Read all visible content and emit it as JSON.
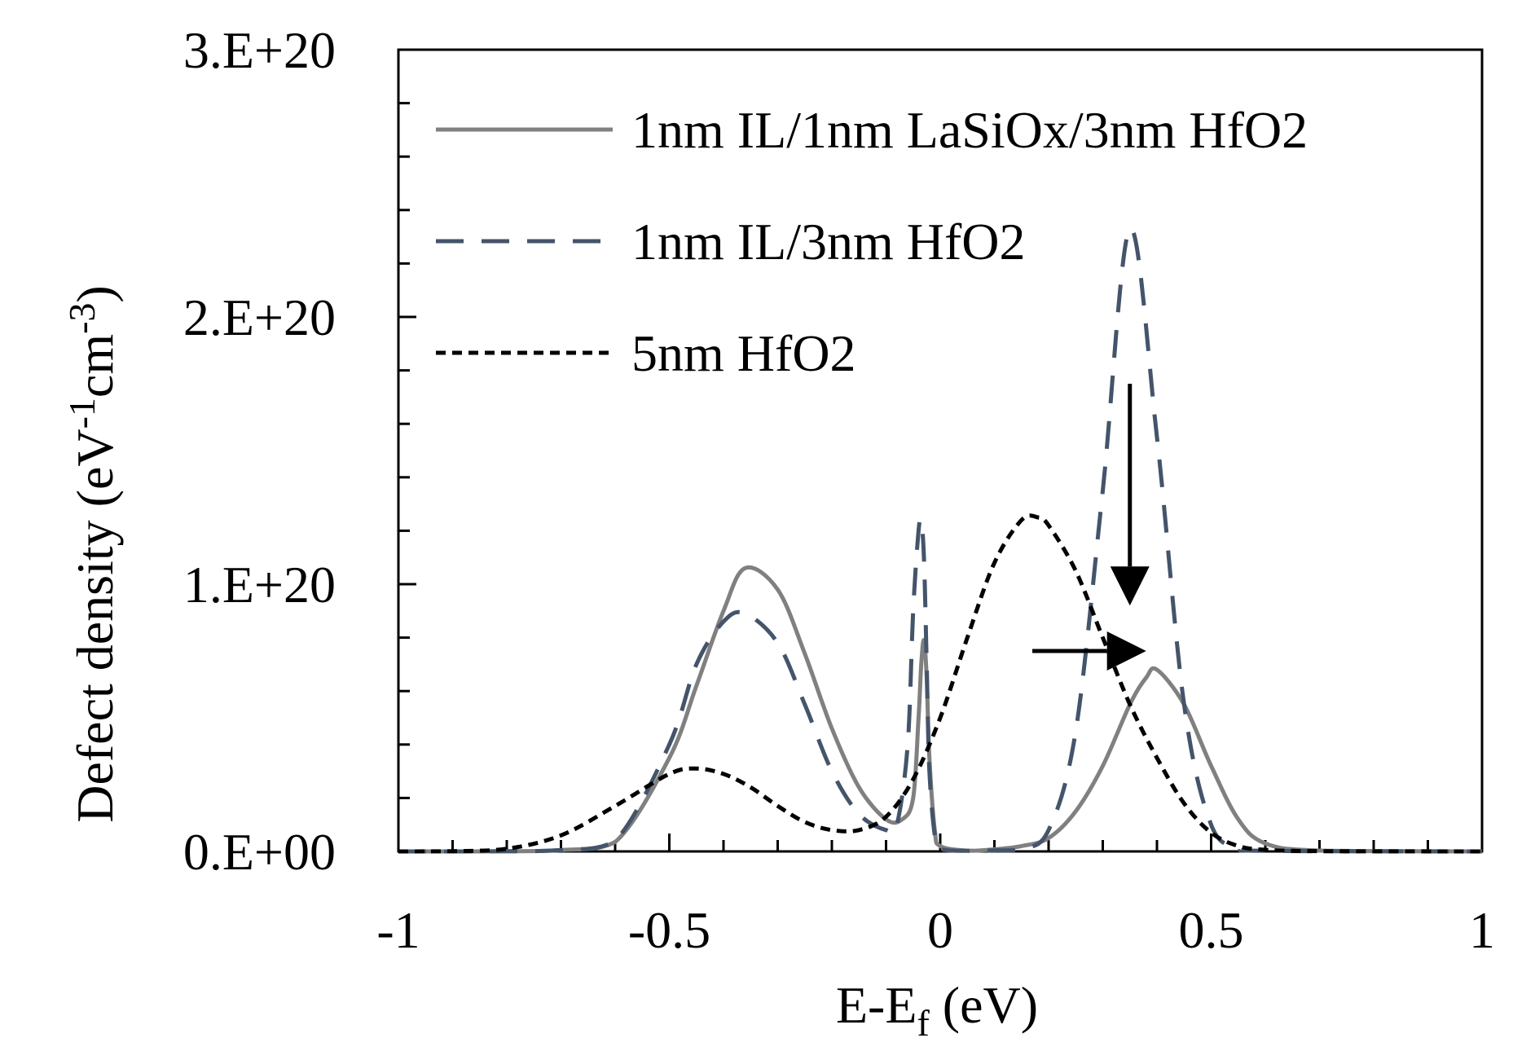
{
  "chart_data": {
    "type": "line",
    "title": "",
    "xlabel": "E-E",
    "xlabel_sub": "f",
    "xlabel_unit": " (eV)",
    "ylabel": "Defect density (eV",
    "ylabel_sup1": "-1",
    "ylabel_mid": "cm",
    "ylabel_sup2": "-3",
    "ylabel_end": ")",
    "xlim": [
      -1,
      1
    ],
    "ylim": [
      0,
      3e+20
    ],
    "x_ticks": [
      -1,
      -0.5,
      0,
      0.5,
      1
    ],
    "x_tick_labels": [
      "-1",
      "-0.5",
      "0",
      "0.5",
      "1"
    ],
    "y_ticks": [
      0,
      1e+20,
      2e+20,
      3e+20
    ],
    "y_tick_labels": [
      "0.E+00",
      "1.E+20",
      "2.E+20",
      "3.E+20"
    ],
    "grid": false,
    "legend_position": "top-left",
    "series": [
      {
        "name": "1nm IL/1nm LaSiOx/3nm HfO2",
        "color": "#808080",
        "dash": "solid",
        "x": [
          -1.0,
          -0.9,
          -0.8,
          -0.7,
          -0.6,
          -0.5,
          -0.45,
          -0.4,
          -0.36,
          -0.3,
          -0.25,
          -0.2,
          -0.15,
          -0.1,
          -0.07,
          -0.05,
          -0.04,
          -0.035,
          -0.03,
          -0.025,
          -0.02,
          -0.01,
          0.0,
          0.05,
          0.1,
          0.15,
          0.2,
          0.25,
          0.3,
          0.35,
          0.38,
          0.4,
          0.45,
          0.5,
          0.55,
          0.6,
          0.7,
          1.0
        ],
        "y": [
          0,
          0,
          5e+16,
          5e+17,
          3.5e+18,
          3.5e+19,
          6.2e+19,
          9e+19,
          1.06e+20,
          9.8e+19,
          7.4e+19,
          4.6e+19,
          2.4e+19,
          1.2e+19,
          1.2e+19,
          2e+19,
          5e+19,
          7e+19,
          7.9e+19,
          6.5e+19,
          3.5e+19,
          8e+18,
          2e+18,
          3e+17,
          8e+17,
          2e+18,
          5e+18,
          1.5e+19,
          3.2e+19,
          5.5e+19,
          6.5e+19,
          6.8e+19,
          5.5e+19,
          3.2e+19,
          1.2e+19,
          3e+18,
          3e+17,
          0
        ]
      },
      {
        "name": "1nm IL/3nm HfO2",
        "color": "#44546a",
        "dash": "long-dash",
        "x": [
          -1.0,
          -0.9,
          -0.8,
          -0.7,
          -0.6,
          -0.5,
          -0.45,
          -0.4,
          -0.36,
          -0.3,
          -0.25,
          -0.2,
          -0.15,
          -0.1,
          -0.08,
          -0.06,
          -0.05,
          -0.04,
          -0.035,
          -0.03,
          -0.025,
          -0.02,
          -0.01,
          0.0,
          0.05,
          0.1,
          0.15,
          0.2,
          0.25,
          0.3,
          0.35,
          0.4,
          0.45,
          0.5,
          0.55,
          0.6,
          1.0
        ],
        "y": [
          0,
          0,
          5e+16,
          5e+17,
          4e+18,
          4e+19,
          7e+19,
          8.6e+19,
          8.9e+19,
          7.8e+19,
          5.5e+19,
          3e+19,
          1.4e+19,
          8e+18,
          1e+19,
          4e+19,
          9e+19,
          1.2e+20,
          1.23e+20,
          1.1e+20,
          7e+19,
          3e+19,
          6e+18,
          1e+18,
          2e+17,
          4e+17,
          1e+18,
          8e+18,
          4.5e+19,
          1.35e+20,
          2.33e+20,
          1.55e+20,
          5.5e+19,
          1e+19,
          1.5e+18,
          2e+17,
          0
        ]
      },
      {
        "name": "5nm HfO2",
        "color": "#000000",
        "dash": "short-dash",
        "x": [
          -1.0,
          -0.9,
          -0.8,
          -0.7,
          -0.6,
          -0.5,
          -0.45,
          -0.4,
          -0.35,
          -0.3,
          -0.25,
          -0.2,
          -0.15,
          -0.1,
          -0.05,
          0.0,
          0.05,
          0.1,
          0.15,
          0.18,
          0.2,
          0.25,
          0.3,
          0.35,
          0.4,
          0.45,
          0.5,
          0.55,
          0.6,
          0.7,
          1.0
        ],
        "y": [
          0,
          1e+17,
          1e+18,
          6e+18,
          1.7e+19,
          2.9e+19,
          3.1e+19,
          2.9e+19,
          2.4e+19,
          1.7e+19,
          1.1e+19,
          8e+18,
          8e+18,
          1.3e+19,
          2.7e+19,
          5e+19,
          8e+19,
          1.08e+20,
          1.24e+20,
          1.25e+20,
          1.22e+20,
          1.05e+20,
          8e+19,
          5.5e+19,
          3.5e+19,
          1.8e+19,
          7e+18,
          2e+18,
          6e+17,
          1e+17,
          0
        ]
      }
    ],
    "annotations": [
      {
        "type": "arrow",
        "direction": "down",
        "from": [
          0.35,
          1.75e+20
        ],
        "to": [
          0.35,
          9.2e+19
        ]
      },
      {
        "type": "arrow",
        "direction": "right",
        "from": [
          0.17,
          7.5e+19
        ],
        "to": [
          0.38,
          7.5e+19
        ]
      }
    ]
  }
}
